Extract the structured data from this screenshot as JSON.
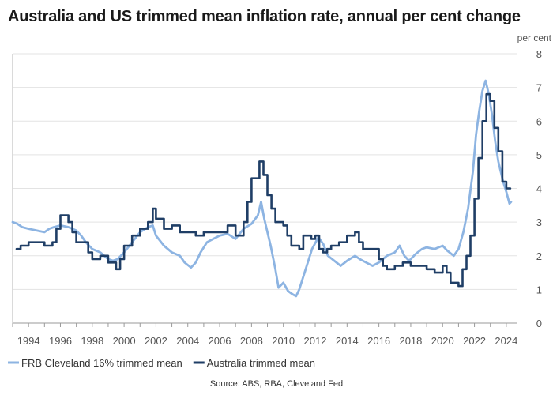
{
  "chart_data": {
    "type": "line",
    "title": "Australia and US trimmed mean inflation rate, annual per cent change",
    "y_unit": "per cent",
    "xlim": [
      1993.0,
      2024.7
    ],
    "ylim": [
      0,
      8
    ],
    "y_ticks": [
      0,
      1,
      2,
      3,
      4,
      5,
      6,
      7,
      8
    ],
    "x_ticks": [
      1994,
      1996,
      1998,
      2000,
      2002,
      2004,
      2006,
      2008,
      2010,
      2012,
      2014,
      2016,
      2018,
      2020,
      2022,
      2024
    ],
    "grid": "horizontal",
    "legend_position": "bottom-left",
    "source": "Source: ABS, RBA, Cleveland Fed",
    "series": [
      {
        "name": "FRB Cleveland 16% trimmed mean",
        "color": "#8db4e2",
        "step": false,
        "points": [
          [
            1993.0,
            3.0
          ],
          [
            1993.3,
            2.95
          ],
          [
            1993.6,
            2.85
          ],
          [
            1994.0,
            2.8
          ],
          [
            1994.5,
            2.75
          ],
          [
            1995.0,
            2.7
          ],
          [
            1995.3,
            2.8
          ],
          [
            1995.6,
            2.85
          ],
          [
            1996.0,
            2.9
          ],
          [
            1996.5,
            2.85
          ],
          [
            1997.0,
            2.75
          ],
          [
            1997.3,
            2.6
          ],
          [
            1997.6,
            2.4
          ],
          [
            1998.0,
            2.2
          ],
          [
            1998.5,
            2.1
          ],
          [
            1999.0,
            1.9
          ],
          [
            1999.3,
            1.85
          ],
          [
            1999.6,
            1.9
          ],
          [
            2000.0,
            2.1
          ],
          [
            2000.5,
            2.4
          ],
          [
            2001.0,
            2.7
          ],
          [
            2001.5,
            2.85
          ],
          [
            2001.8,
            2.9
          ],
          [
            2002.0,
            2.6
          ],
          [
            2002.5,
            2.3
          ],
          [
            2003.0,
            2.1
          ],
          [
            2003.5,
            2.0
          ],
          [
            2003.8,
            1.8
          ],
          [
            2004.2,
            1.65
          ],
          [
            2004.5,
            1.8
          ],
          [
            2004.8,
            2.1
          ],
          [
            2005.2,
            2.4
          ],
          [
            2005.6,
            2.5
          ],
          [
            2006.0,
            2.6
          ],
          [
            2006.5,
            2.65
          ],
          [
            2007.0,
            2.5
          ],
          [
            2007.5,
            2.8
          ],
          [
            2008.0,
            2.95
          ],
          [
            2008.4,
            3.2
          ],
          [
            2008.6,
            3.6
          ],
          [
            2008.8,
            3.1
          ],
          [
            2009.2,
            2.3
          ],
          [
            2009.5,
            1.6
          ],
          [
            2009.7,
            1.05
          ],
          [
            2010.0,
            1.2
          ],
          [
            2010.3,
            0.95
          ],
          [
            2010.6,
            0.85
          ],
          [
            2010.8,
            0.8
          ],
          [
            2011.0,
            1.0
          ],
          [
            2011.4,
            1.6
          ],
          [
            2011.8,
            2.2
          ],
          [
            2012.2,
            2.55
          ],
          [
            2012.5,
            2.35
          ],
          [
            2012.8,
            2.0
          ],
          [
            2013.2,
            1.85
          ],
          [
            2013.6,
            1.7
          ],
          [
            2014.0,
            1.85
          ],
          [
            2014.5,
            2.0
          ],
          [
            2014.8,
            1.9
          ],
          [
            2015.2,
            1.8
          ],
          [
            2015.6,
            1.7
          ],
          [
            2016.0,
            1.8
          ],
          [
            2016.5,
            2.0
          ],
          [
            2017.0,
            2.1
          ],
          [
            2017.3,
            2.3
          ],
          [
            2017.6,
            2.0
          ],
          [
            2017.9,
            1.85
          ],
          [
            2018.3,
            2.05
          ],
          [
            2018.7,
            2.2
          ],
          [
            2019.0,
            2.25
          ],
          [
            2019.5,
            2.2
          ],
          [
            2020.0,
            2.3
          ],
          [
            2020.3,
            2.15
          ],
          [
            2020.7,
            2.0
          ],
          [
            2021.0,
            2.2
          ],
          [
            2021.3,
            2.7
          ],
          [
            2021.6,
            3.4
          ],
          [
            2021.9,
            4.5
          ],
          [
            2022.1,
            5.6
          ],
          [
            2022.3,
            6.3
          ],
          [
            2022.5,
            6.9
          ],
          [
            2022.7,
            7.2
          ],
          [
            2022.9,
            6.8
          ],
          [
            2023.1,
            6.2
          ],
          [
            2023.3,
            5.4
          ],
          [
            2023.5,
            4.8
          ],
          [
            2023.8,
            4.2
          ],
          [
            2024.0,
            3.9
          ],
          [
            2024.2,
            3.55
          ],
          [
            2024.3,
            3.6
          ]
        ]
      },
      {
        "name": "Australia trimmed mean",
        "color": "#1f3e66",
        "step": true,
        "points": [
          [
            1993.25,
            2.2
          ],
          [
            1993.5,
            2.3
          ],
          [
            1994.0,
            2.4
          ],
          [
            1994.5,
            2.4
          ],
          [
            1995.0,
            2.3
          ],
          [
            1995.5,
            2.4
          ],
          [
            1995.75,
            2.8
          ],
          [
            1996.0,
            3.2
          ],
          [
            1996.5,
            3.0
          ],
          [
            1996.75,
            2.7
          ],
          [
            1997.0,
            2.4
          ],
          [
            1997.5,
            2.4
          ],
          [
            1997.75,
            2.1
          ],
          [
            1998.0,
            1.9
          ],
          [
            1998.5,
            2.0
          ],
          [
            1999.0,
            1.8
          ],
          [
            1999.5,
            1.6
          ],
          [
            1999.75,
            1.9
          ],
          [
            2000.0,
            2.3
          ],
          [
            2000.5,
            2.6
          ],
          [
            2001.0,
            2.8
          ],
          [
            2001.5,
            3.0
          ],
          [
            2001.8,
            3.4
          ],
          [
            2002.0,
            3.1
          ],
          [
            2002.5,
            2.8
          ],
          [
            2003.0,
            2.9
          ],
          [
            2003.5,
            2.7
          ],
          [
            2004.0,
            2.7
          ],
          [
            2004.5,
            2.6
          ],
          [
            2005.0,
            2.7
          ],
          [
            2005.5,
            2.7
          ],
          [
            2006.0,
            2.7
          ],
          [
            2006.5,
            2.9
          ],
          [
            2007.0,
            2.6
          ],
          [
            2007.5,
            3.0
          ],
          [
            2007.75,
            3.6
          ],
          [
            2008.0,
            4.3
          ],
          [
            2008.5,
            4.8
          ],
          [
            2008.75,
            4.4
          ],
          [
            2009.0,
            3.8
          ],
          [
            2009.25,
            3.4
          ],
          [
            2009.5,
            3.0
          ],
          [
            2010.0,
            2.9
          ],
          [
            2010.25,
            2.6
          ],
          [
            2010.5,
            2.3
          ],
          [
            2011.0,
            2.2
          ],
          [
            2011.25,
            2.6
          ],
          [
            2011.5,
            2.6
          ],
          [
            2011.75,
            2.5
          ],
          [
            2012.0,
            2.6
          ],
          [
            2012.25,
            2.2
          ],
          [
            2012.5,
            2.1
          ],
          [
            2012.75,
            2.2
          ],
          [
            2013.0,
            2.3
          ],
          [
            2013.5,
            2.4
          ],
          [
            2014.0,
            2.6
          ],
          [
            2014.5,
            2.7
          ],
          [
            2014.75,
            2.4
          ],
          [
            2015.0,
            2.2
          ],
          [
            2015.5,
            2.2
          ],
          [
            2016.0,
            1.9
          ],
          [
            2016.25,
            1.7
          ],
          [
            2016.5,
            1.6
          ],
          [
            2017.0,
            1.7
          ],
          [
            2017.5,
            1.8
          ],
          [
            2018.0,
            1.7
          ],
          [
            2018.5,
            1.7
          ],
          [
            2019.0,
            1.6
          ],
          [
            2019.5,
            1.5
          ],
          [
            2020.0,
            1.7
          ],
          [
            2020.25,
            1.5
          ],
          [
            2020.5,
            1.2
          ],
          [
            2020.75,
            1.2
          ],
          [
            2021.0,
            1.1
          ],
          [
            2021.25,
            1.6
          ],
          [
            2021.5,
            2.0
          ],
          [
            2021.75,
            2.6
          ],
          [
            2022.0,
            3.7
          ],
          [
            2022.25,
            4.9
          ],
          [
            2022.5,
            6.0
          ],
          [
            2022.75,
            6.8
          ],
          [
            2023.0,
            6.6
          ],
          [
            2023.25,
            5.8
          ],
          [
            2023.5,
            5.1
          ],
          [
            2023.75,
            4.2
          ],
          [
            2024.0,
            4.0
          ],
          [
            2024.25,
            4.0
          ]
        ]
      }
    ]
  }
}
